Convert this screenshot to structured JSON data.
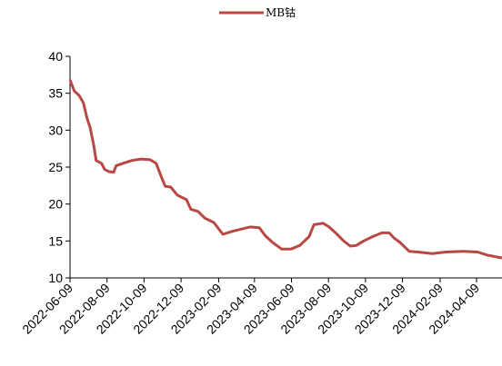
{
  "chart_data": {
    "type": "line",
    "x": [
      "2022-06-09",
      "2022-06-16",
      "2022-06-24",
      "2022-07-01",
      "2022-07-07",
      "2022-07-12",
      "2022-07-18",
      "2022-07-22",
      "2022-07-31",
      "2022-08-05",
      "2022-08-12",
      "2022-08-20",
      "2022-08-24",
      "2022-09-04",
      "2022-09-19",
      "2022-10-04",
      "2022-10-19",
      "2022-10-29",
      "2022-11-07",
      "2022-11-13",
      "2022-11-22",
      "2022-12-03",
      "2022-12-18",
      "2022-12-25",
      "2023-01-06",
      "2023-01-17",
      "2023-02-01",
      "2023-02-16",
      "2023-03-03",
      "2023-03-18",
      "2023-04-02",
      "2023-04-17",
      "2023-04-27",
      "2023-05-09",
      "2023-05-24",
      "2023-06-08",
      "2023-06-23",
      "2023-07-08",
      "2023-07-16",
      "2023-07-31",
      "2023-08-10",
      "2023-08-22",
      "2023-09-03",
      "2023-09-14",
      "2023-09-24",
      "2023-10-06",
      "2023-10-21",
      "2023-11-05",
      "2023-11-17",
      "2023-11-25",
      "2023-12-05",
      "2023-12-20",
      "2024-01-04",
      "2024-01-27",
      "2024-02-18",
      "2024-03-19",
      "2024-04-11",
      "2024-04-26",
      "2024-05-21"
    ],
    "series": [
      {
        "name": "MB钴",
        "color": "#b94845",
        "values": [
          36.8,
          35.3,
          34.7,
          33.7,
          31.6,
          30.4,
          28,
          25.9,
          25.5,
          24.7,
          24.4,
          24.3,
          25.2,
          25.5,
          25.9,
          26.1,
          26,
          25.5,
          23.6,
          22.4,
          22.3,
          21.2,
          20.6,
          19.3,
          19,
          18.1,
          17.5,
          15.9,
          16.3,
          16.6,
          16.9,
          16.8,
          15.7,
          14.8,
          13.9,
          13.9,
          14.4,
          15.6,
          17.2,
          17.4,
          16.9,
          16,
          15,
          14.3,
          14.4,
          15,
          15.6,
          16.1,
          16.1,
          15.4,
          14.8,
          13.6,
          13.5,
          13.3,
          13.5,
          13.6,
          13.5,
          13.1,
          12.7
        ]
      }
    ],
    "xlim": [
      "2022-06-09",
      "2024-05-21"
    ],
    "xticks": [
      "2022-06-09",
      "2022-08-09",
      "2022-10-09",
      "2022-12-09",
      "2023-02-09",
      "2023-04-09",
      "2023-06-09",
      "2023-08-09",
      "2023-10-09",
      "2023-12-09",
      "2024-02-09",
      "2024-04-09"
    ],
    "ylim": [
      10,
      40
    ],
    "yticks": [
      10,
      15,
      20,
      25,
      30,
      35,
      40
    ],
    "grid": false,
    "legend": "top"
  }
}
